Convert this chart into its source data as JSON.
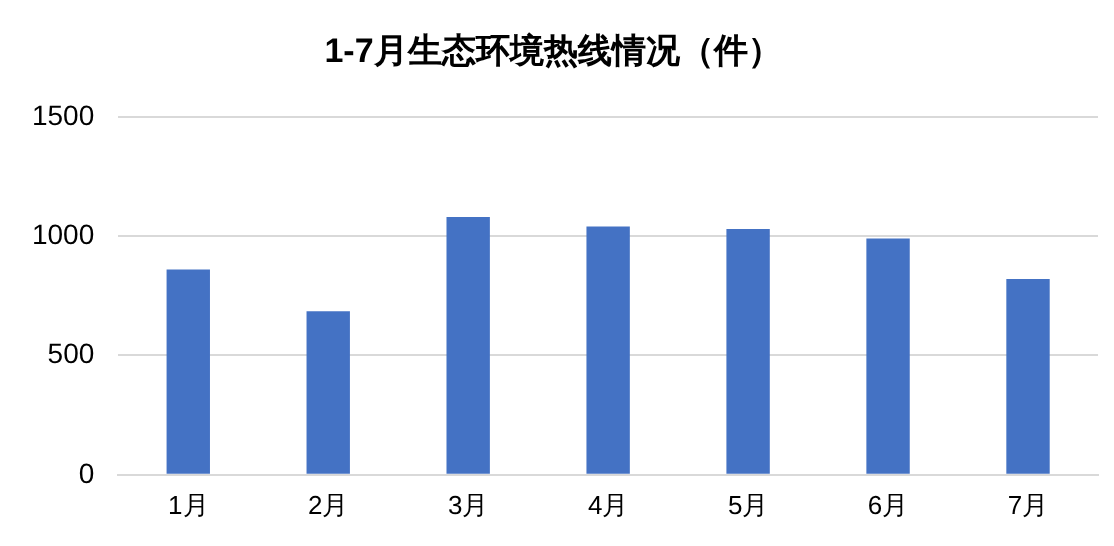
{
  "chart_data": {
    "type": "bar",
    "title": "1-7月生态环境热线情况（件）",
    "categories": [
      "1月",
      "2月",
      "3月",
      "4月",
      "5月",
      "6月",
      "7月"
    ],
    "values": [
      860,
      685,
      1080,
      1040,
      1030,
      990,
      820
    ],
    "color": "#4472c4",
    "ylim": [
      0,
      1500
    ],
    "yticks": [
      0,
      500,
      1000,
      1500
    ],
    "grid": "y",
    "legend": false
  }
}
